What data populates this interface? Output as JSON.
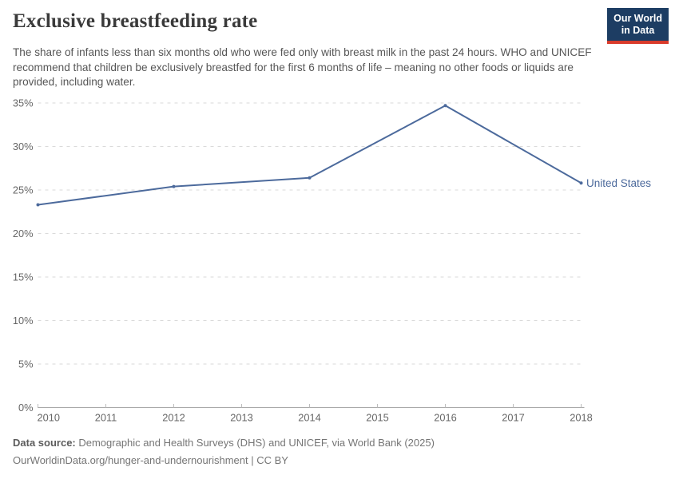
{
  "header": {
    "title": "Exclusive breastfeeding rate",
    "subtitle": "The share of infants less than six months old who were fed only with breast milk in the past 24 hours. WHO and UNICEF recommend that children be exclusively breastfed for the first 6 months of life – meaning no other foods or liquids are provided, including water.",
    "logo": {
      "line1": "Our World",
      "line2": "in Data",
      "background": "#1d3d63",
      "stripe": "#d93b2b",
      "style": "background:#1d3d63;border-bottom:4px solid #d93b2b;"
    }
  },
  "chart_data": {
    "type": "line",
    "title": "Exclusive breastfeeding rate",
    "x": [
      2010,
      2012,
      2014,
      2016,
      2018
    ],
    "series": [
      {
        "name": "United States",
        "values": [
          23.3,
          25.4,
          26.4,
          34.7,
          25.8
        ],
        "color": "#4c6a9c"
      }
    ],
    "xlabel": "",
    "ylabel": "",
    "ylim": [
      0,
      35
    ],
    "yticks": [
      0,
      5,
      10,
      15,
      20,
      25,
      30,
      35
    ],
    "ytick_suffix": "%",
    "xticks": [
      2010,
      2011,
      2012,
      2013,
      2014,
      2015,
      2016,
      2017,
      2018
    ],
    "grid": "horizontal-dashed",
    "grid_color": "#dadada",
    "axis_color": "#a9a9a9",
    "tick_label_color": "#666666",
    "legend_position": "end-of-line-label",
    "markers": true
  },
  "footer": {
    "datasource_label": "Data source:",
    "datasource_text": " Demographic and Health Surveys (DHS) and UNICEF, via World Bank (2025)",
    "license_text": "OurWorldinData.org/hunger-and-undernourishment | CC BY"
  }
}
